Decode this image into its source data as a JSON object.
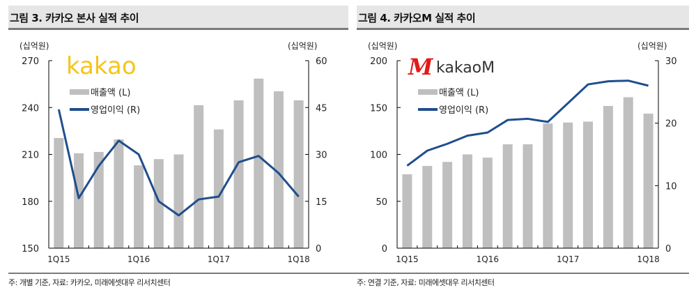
{
  "chart_data": [
    {
      "type": "bar",
      "title": "그림 3. 카카오 본사 실적 추이",
      "logo": "kakao",
      "left_unit": "(십억원)",
      "right_unit": "(십억원)",
      "ylim": [
        150,
        270
      ],
      "yticks": [
        150,
        180,
        210,
        240,
        270
      ],
      "y2lim": [
        0,
        60
      ],
      "y2ticks": [
        0,
        15,
        30,
        45,
        60
      ],
      "categories": [
        "1Q15",
        "2Q15",
        "3Q15",
        "4Q15",
        "1Q16",
        "2Q16",
        "3Q16",
        "4Q16",
        "1Q17",
        "2Q17",
        "3Q17",
        "4Q17",
        "1Q18"
      ],
      "xtick_labels": [
        "1Q15",
        "1Q16",
        "1Q17",
        "1Q18"
      ],
      "series": [
        {
          "name": "매출액 (L)",
          "type": "bar",
          "axis": "left",
          "color": "#bfbfbf",
          "values": [
            220.5,
            210.7,
            211.6,
            219.6,
            203,
            207,
            210,
            241.5,
            226,
            244.6,
            258.5,
            250.4,
            244.6
          ]
        },
        {
          "name": "영업이익 (R)",
          "type": "line",
          "axis": "right",
          "color": "#1f4e8c",
          "values": [
            44.4,
            16,
            26.3,
            34.4,
            30,
            15,
            10.5,
            15.6,
            16.5,
            27.5,
            29.5,
            24,
            16.5
          ]
        }
      ],
      "note": "주: 개별 기준, 자료: 카카오, 미래에셋대우 리서치센터"
    },
    {
      "type": "bar",
      "title": "그림 4. 카카오M 실적 추이",
      "logo": "kakaoM",
      "left_unit": "(십억원)",
      "right_unit": "(십억원)",
      "ylim": [
        0,
        200
      ],
      "yticks": [
        0,
        50,
        100,
        150,
        200
      ],
      "y2lim": [
        0,
        30
      ],
      "y2ticks": [
        0,
        10,
        20,
        30
      ],
      "categories": [
        "1Q15",
        "2Q15",
        "3Q15",
        "4Q15",
        "1Q16",
        "2Q16",
        "3Q16",
        "4Q16",
        "1Q17",
        "2Q17",
        "3Q17",
        "4Q17",
        "1Q18"
      ],
      "xtick_labels": [
        "1Q15",
        "1Q16",
        "1Q17",
        "1Q18"
      ],
      "series": [
        {
          "name": "매출액 (L)",
          "type": "bar",
          "axis": "left",
          "color": "#bfbfbf",
          "values": [
            78.8,
            87.7,
            92,
            100,
            96.6,
            110.8,
            110.8,
            133,
            134,
            135,
            151.7,
            161,
            143.5
          ]
        },
        {
          "name": "영업이익 (R)",
          "type": "line",
          "axis": "right",
          "color": "#1f4e8c",
          "values": [
            13.2,
            15.6,
            16.7,
            18,
            18.5,
            20.5,
            20.7,
            20.2,
            23.2,
            26.2,
            26.7,
            26.8,
            26
          ]
        }
      ],
      "note": "주: 연결 기준, 자료: 미래에셋대우 리서치센터"
    }
  ]
}
